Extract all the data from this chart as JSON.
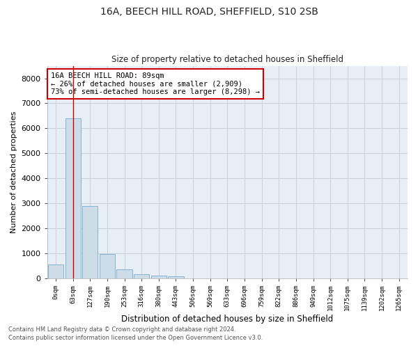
{
  "title_line1": "16A, BEECH HILL ROAD, SHEFFIELD, S10 2SB",
  "title_line2": "Size of property relative to detached houses in Sheffield",
  "xlabel": "Distribution of detached houses by size in Sheffield",
  "ylabel": "Number of detached properties",
  "bar_color": "#ccdce8",
  "bar_edge_color": "#7aaac8",
  "grid_color": "#c8d0dc",
  "background_color": "#e8eef5",
  "bar_labels": [
    "0sqm",
    "63sqm",
    "127sqm",
    "190sqm",
    "253sqm",
    "316sqm",
    "380sqm",
    "443sqm",
    "506sqm",
    "569sqm",
    "633sqm",
    "696sqm",
    "759sqm",
    "822sqm",
    "886sqm",
    "949sqm",
    "1012sqm",
    "1075sqm",
    "1139sqm",
    "1202sqm",
    "1265sqm"
  ],
  "bar_values": [
    560,
    6400,
    2900,
    980,
    350,
    160,
    100,
    80,
    0,
    0,
    0,
    0,
    0,
    0,
    0,
    0,
    0,
    0,
    0,
    0,
    0
  ],
  "ylim": [
    0,
    8500
  ],
  "yticks": [
    0,
    1000,
    2000,
    3000,
    4000,
    5000,
    6000,
    7000,
    8000
  ],
  "property_bar_index": 1,
  "vline_color": "#cc0000",
  "annotation_text": "16A BEECH HILL ROAD: 89sqm\n← 26% of detached houses are smaller (2,909)\n73% of semi-detached houses are larger (8,298) →",
  "annotation_box_color": "#ffffff",
  "annotation_box_edge": "#cc0000",
  "footer_line1": "Contains HM Land Registry data © Crown copyright and database right 2024.",
  "footer_line2": "Contains public sector information licensed under the Open Government Licence v3.0."
}
